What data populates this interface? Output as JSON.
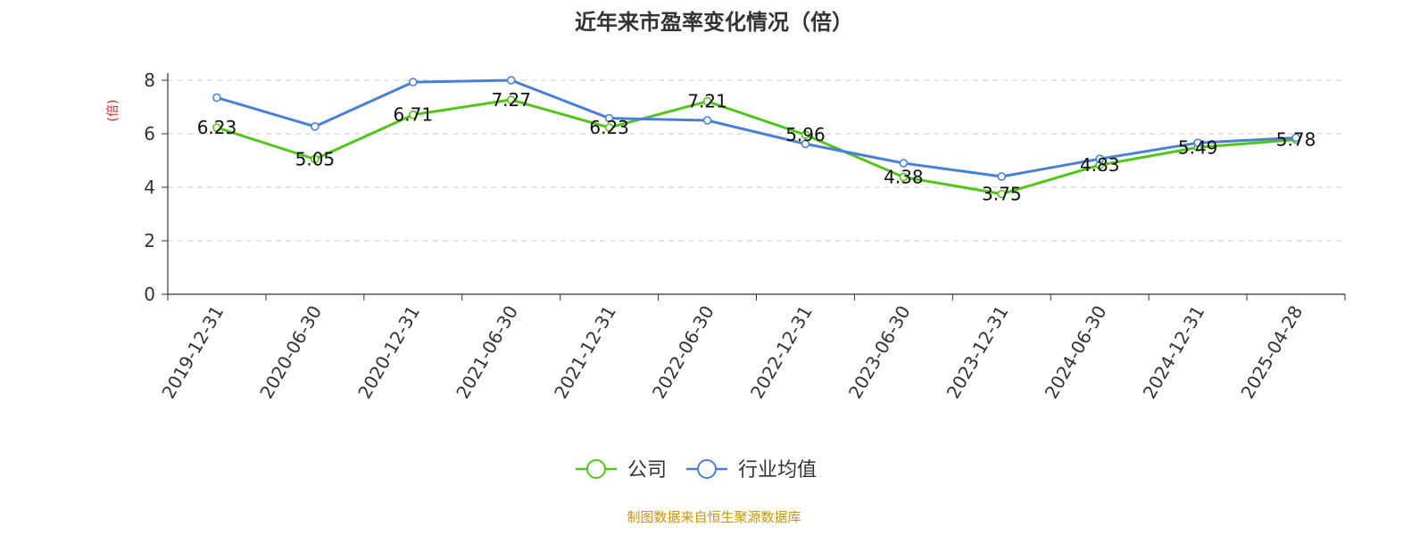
{
  "chart_data": {
    "type": "line",
    "title": "近年来市盈率变化情况（倍）",
    "ylabel": "(倍)",
    "xlabel": "",
    "categories": [
      "2019-12-31",
      "2020-06-30",
      "2020-12-31",
      "2021-06-30",
      "2021-12-31",
      "2022-06-30",
      "2022-12-31",
      "2023-06-30",
      "2023-12-31",
      "2024-06-30",
      "2024-12-31",
      "2025-04-28"
    ],
    "ylim": [
      0,
      8
    ],
    "yticks": [
      0,
      2,
      4,
      6,
      8
    ],
    "grid": true,
    "legend_position": "bottom",
    "series": [
      {
        "name": "公司",
        "color": "#52c41a",
        "values": [
          6.23,
          5.05,
          6.71,
          7.27,
          6.23,
          7.21,
          5.96,
          4.38,
          3.75,
          4.83,
          5.49,
          5.78
        ],
        "labels": [
          "6.23",
          "5.05",
          "6.71",
          "7.27",
          "6.23",
          "7.21",
          "5.96",
          "4.38",
          "3.75",
          "4.83",
          "5.49",
          "5.78"
        ]
      },
      {
        "name": "行业均值",
        "color": "#4a7fd6",
        "values": [
          7.35,
          6.27,
          7.93,
          8.0,
          6.58,
          6.5,
          5.62,
          4.9,
          4.4,
          5.06,
          5.66,
          5.85
        ]
      }
    ],
    "source": "制图数据来自恒生聚源数据库",
    "ylabel_color": "#e02020",
    "source_color": "#c8960c"
  }
}
